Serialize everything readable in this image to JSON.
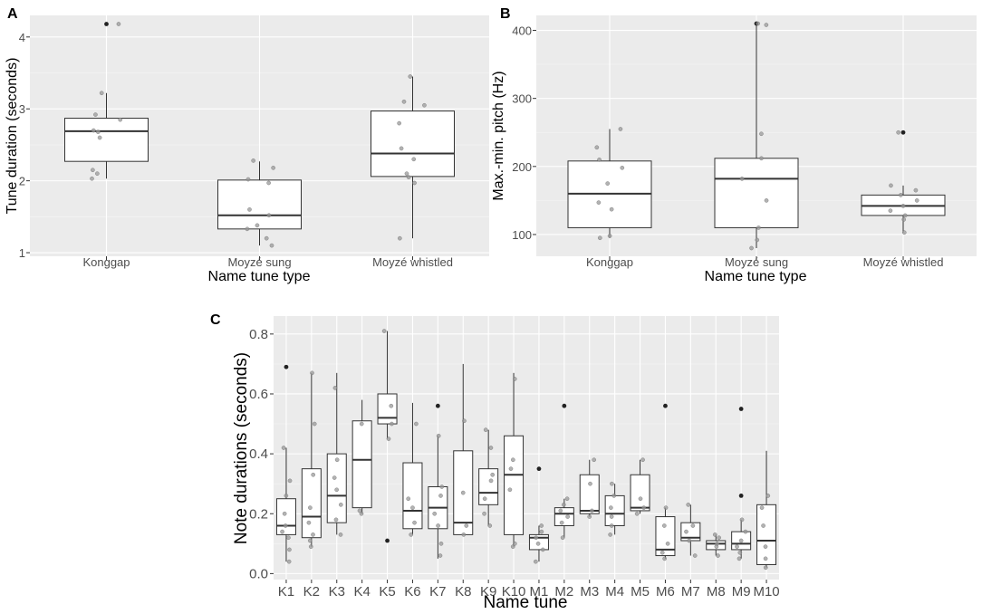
{
  "chart_data": [
    {
      "panel": "A",
      "type": "boxplot",
      "xlabel": "Name tune type",
      "ylabel": "Tune duration (seconds)",
      "ylim": [
        0.95,
        4.3
      ],
      "yticks": [
        1,
        2,
        3,
        4
      ],
      "categories": [
        "Konggap",
        "Moyzé sung",
        "Moyzé whistled"
      ],
      "boxes": [
        {
          "q1": 2.27,
          "median": 2.69,
          "q3": 2.87,
          "whisker_low": 2.03,
          "whisker_high": 3.22,
          "outliers": [
            4.18
          ],
          "points": [
            2.03,
            2.1,
            2.15,
            2.6,
            2.68,
            2.7,
            2.85,
            2.92,
            3.22,
            4.18
          ]
        },
        {
          "q1": 1.33,
          "median": 1.52,
          "q3": 2.01,
          "whisker_low": 1.1,
          "whisker_high": 2.27,
          "outliers": [],
          "points": [
            1.1,
            1.2,
            1.33,
            1.38,
            1.52,
            1.6,
            1.97,
            2.02,
            2.18,
            2.28
          ]
        },
        {
          "q1": 2.06,
          "median": 2.38,
          "q3": 2.97,
          "whisker_low": 1.2,
          "whisker_high": 3.45,
          "outliers": [],
          "points": [
            1.2,
            1.97,
            2.05,
            2.1,
            2.3,
            2.45,
            2.8,
            3.05,
            3.1,
            3.45
          ]
        }
      ]
    },
    {
      "panel": "B",
      "type": "boxplot",
      "xlabel": "Name tune type",
      "ylabel": "Max.-min. pitch (Hz)",
      "ylim": [
        68,
        422
      ],
      "yticks": [
        100,
        200,
        300,
        400
      ],
      "categories": [
        "Konggap",
        "Moyzé sung",
        "Moyzé whistled"
      ],
      "boxes": [
        {
          "q1": 110,
          "median": 160,
          "q3": 208,
          "whisker_low": 95,
          "whisker_high": 255,
          "outliers": [],
          "points": [
            95,
            98,
            137,
            147,
            175,
            198,
            210,
            228,
            255
          ]
        },
        {
          "q1": 110,
          "median": 182,
          "q3": 212,
          "whisker_low": 80,
          "whisker_high": 410,
          "outliers": [
            410
          ],
          "points": [
            80,
            92,
            110,
            150,
            182,
            212,
            248,
            408,
            410
          ]
        },
        {
          "q1": 128,
          "median": 142,
          "q3": 158,
          "whisker_low": 103,
          "whisker_high": 172,
          "outliers": [
            250
          ],
          "points": [
            103,
            122,
            128,
            135,
            142,
            150,
            158,
            165,
            172,
            250
          ]
        }
      ]
    },
    {
      "panel": "C",
      "type": "boxplot",
      "xlabel": "Name tune",
      "ylabel": "Note durations (seconds)",
      "ylim": [
        -0.02,
        0.86
      ],
      "yticks": [
        0.0,
        0.2,
        0.4,
        0.6,
        0.8
      ],
      "ytick_labels": [
        "0.0",
        "0.2",
        "0.4",
        "0.6",
        "0.8"
      ],
      "categories": [
        "K1",
        "K2",
        "K3",
        "K4",
        "K5",
        "K6",
        "K7",
        "K8",
        "K9",
        "K10",
        "M1",
        "M2",
        "M3",
        "M4",
        "M5",
        "M6",
        "M7",
        "M8",
        "M9",
        "M10"
      ],
      "boxes": [
        {
          "q1": 0.13,
          "median": 0.16,
          "q3": 0.25,
          "whisker_low": 0.04,
          "whisker_high": 0.42,
          "outliers": [
            0.69
          ],
          "points": [
            0.04,
            0.08,
            0.12,
            0.14,
            0.16,
            0.2,
            0.26,
            0.31,
            0.42
          ]
        },
        {
          "q1": 0.12,
          "median": 0.19,
          "q3": 0.35,
          "whisker_low": 0.09,
          "whisker_high": 0.67,
          "outliers": [],
          "points": [
            0.09,
            0.11,
            0.13,
            0.17,
            0.22,
            0.33,
            0.5,
            0.67
          ]
        },
        {
          "q1": 0.17,
          "median": 0.26,
          "q3": 0.4,
          "whisker_low": 0.13,
          "whisker_high": 0.67,
          "outliers": [],
          "points": [
            0.13,
            0.18,
            0.23,
            0.28,
            0.32,
            0.38,
            0.62
          ]
        },
        {
          "q1": 0.22,
          "median": 0.38,
          "q3": 0.51,
          "whisker_low": 0.2,
          "whisker_high": 0.58,
          "outliers": [],
          "points": [
            0.2,
            0.21,
            0.5
          ]
        },
        {
          "q1": 0.5,
          "median": 0.52,
          "q3": 0.6,
          "whisker_low": 0.45,
          "whisker_high": 0.81,
          "outliers": [
            0.11
          ],
          "points": [
            0.45,
            0.5,
            0.56,
            0.81
          ]
        },
        {
          "q1": 0.15,
          "median": 0.21,
          "q3": 0.37,
          "whisker_low": 0.13,
          "whisker_high": 0.57,
          "outliers": [],
          "points": [
            0.13,
            0.17,
            0.22,
            0.25,
            0.5
          ]
        },
        {
          "q1": 0.15,
          "median": 0.22,
          "q3": 0.29,
          "whisker_low": 0.05,
          "whisker_high": 0.46,
          "outliers": [
            0.56
          ],
          "points": [
            0.06,
            0.1,
            0.16,
            0.2,
            0.26,
            0.29,
            0.46
          ]
        },
        {
          "q1": 0.13,
          "median": 0.17,
          "q3": 0.41,
          "whisker_low": 0.13,
          "whisker_high": 0.7,
          "outliers": [],
          "points": [
            0.13,
            0.16,
            0.27,
            0.51
          ]
        },
        {
          "q1": 0.23,
          "median": 0.27,
          "q3": 0.35,
          "whisker_low": 0.16,
          "whisker_high": 0.48,
          "outliers": [],
          "points": [
            0.16,
            0.2,
            0.25,
            0.31,
            0.33,
            0.42,
            0.48
          ]
        },
        {
          "q1": 0.13,
          "median": 0.33,
          "q3": 0.46,
          "whisker_low": 0.09,
          "whisker_high": 0.67,
          "outliers": [],
          "points": [
            0.09,
            0.1,
            0.28,
            0.35,
            0.38,
            0.65
          ]
        },
        {
          "q1": 0.08,
          "median": 0.12,
          "q3": 0.13,
          "whisker_low": 0.04,
          "whisker_high": 0.16,
          "outliers": [
            0.35
          ],
          "points": [
            0.04,
            0.08,
            0.1,
            0.12,
            0.14,
            0.16
          ]
        },
        {
          "q1": 0.16,
          "median": 0.2,
          "q3": 0.22,
          "whisker_low": 0.12,
          "whisker_high": 0.25,
          "outliers": [
            0.56
          ],
          "points": [
            0.12,
            0.17,
            0.19,
            0.21,
            0.23,
            0.25
          ]
        },
        {
          "q1": 0.2,
          "median": 0.21,
          "q3": 0.33,
          "whisker_low": 0.19,
          "whisker_high": 0.38,
          "outliers": [],
          "points": [
            0.19,
            0.21,
            0.3,
            0.38
          ]
        },
        {
          "q1": 0.16,
          "median": 0.2,
          "q3": 0.26,
          "whisker_low": 0.13,
          "whisker_high": 0.3,
          "outliers": [],
          "points": [
            0.13,
            0.16,
            0.19,
            0.22,
            0.26,
            0.3
          ]
        },
        {
          "q1": 0.21,
          "median": 0.22,
          "q3": 0.33,
          "whisker_low": 0.2,
          "whisker_high": 0.38,
          "outliers": [],
          "points": [
            0.2,
            0.22,
            0.25,
            0.38
          ]
        },
        {
          "q1": 0.06,
          "median": 0.08,
          "q3": 0.19,
          "whisker_low": 0.05,
          "whisker_high": 0.22,
          "outliers": [
            0.56
          ],
          "points": [
            0.05,
            0.07,
            0.1,
            0.16,
            0.22
          ]
        },
        {
          "q1": 0.11,
          "median": 0.12,
          "q3": 0.17,
          "whisker_low": 0.06,
          "whisker_high": 0.23,
          "outliers": [],
          "points": [
            0.06,
            0.11,
            0.14,
            0.16,
            0.23
          ]
        },
        {
          "q1": 0.08,
          "median": 0.1,
          "q3": 0.11,
          "whisker_low": 0.06,
          "whisker_high": 0.13,
          "outliers": [],
          "points": [
            0.06,
            0.09,
            0.1,
            0.12,
            0.13
          ]
        },
        {
          "q1": 0.08,
          "median": 0.1,
          "q3": 0.14,
          "whisker_low": 0.05,
          "whisker_high": 0.18,
          "outliers": [
            0.26,
            0.55
          ],
          "points": [
            0.05,
            0.07,
            0.09,
            0.11,
            0.14,
            0.18
          ]
        },
        {
          "q1": 0.03,
          "median": 0.11,
          "q3": 0.23,
          "whisker_low": 0.02,
          "whisker_high": 0.41,
          "outliers": [],
          "points": [
            0.02,
            0.05,
            0.09,
            0.16,
            0.22,
            0.26
          ]
        }
      ]
    }
  ]
}
